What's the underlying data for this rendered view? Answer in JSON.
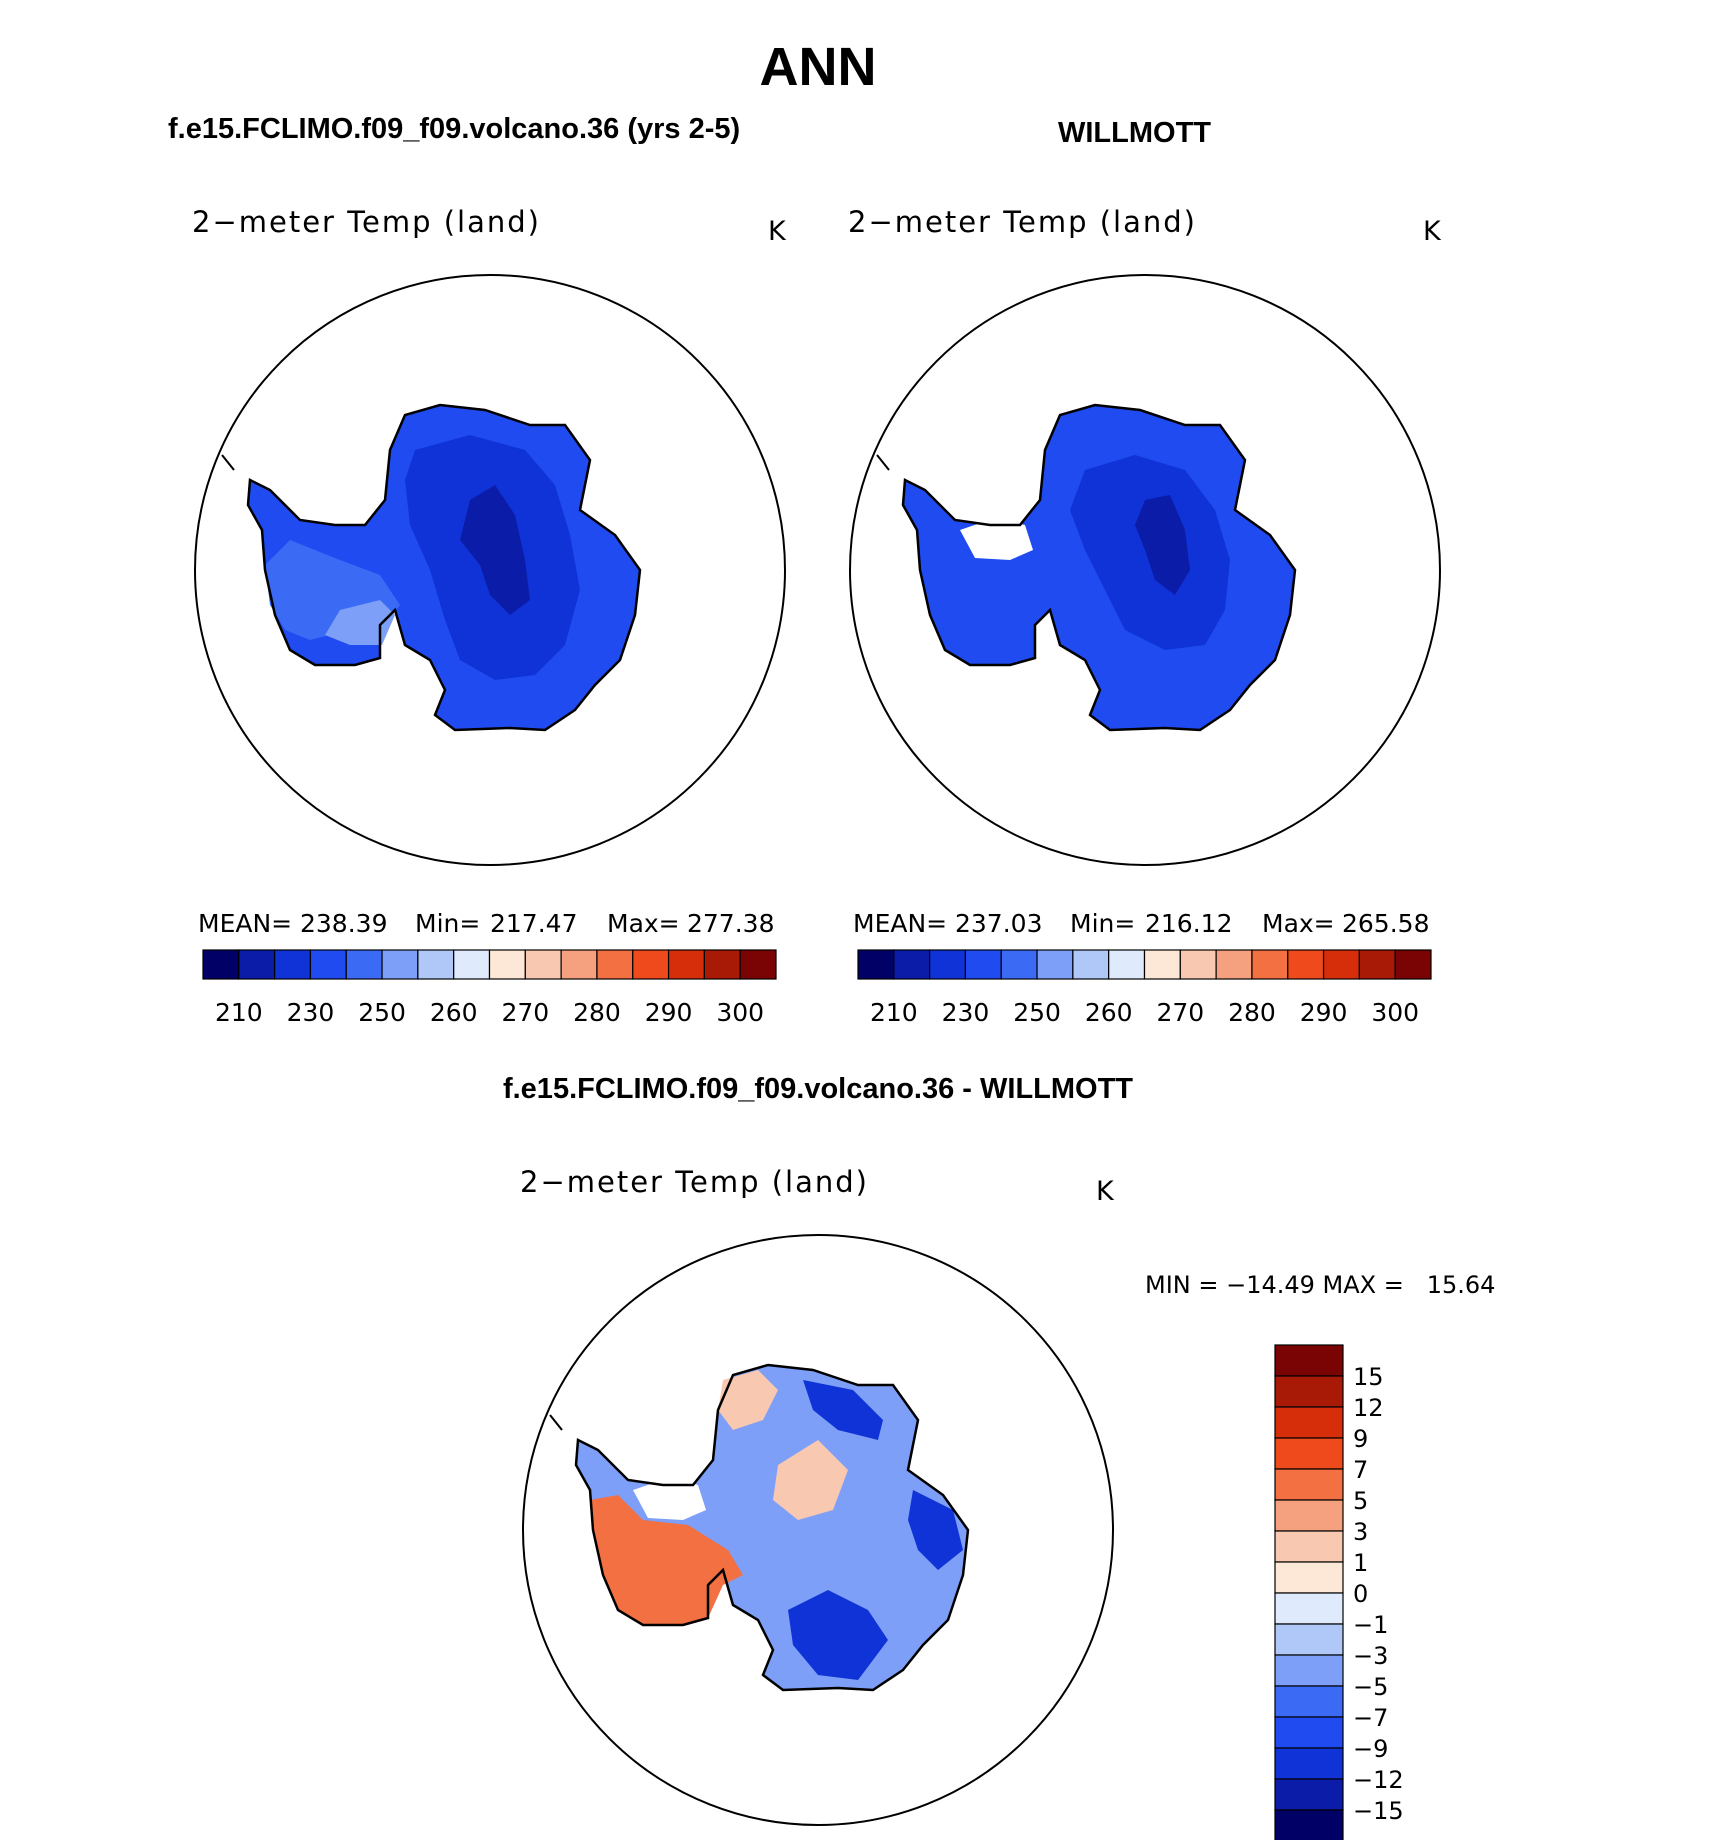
{
  "figure": {
    "season": "ANN",
    "units": "K",
    "panels": [
      {
        "title": "f.e15.FCLIMO.f09_f09.volcano.36 (yrs 2-5)",
        "variable": "2−meter Temp (land)",
        "units": "K",
        "stats": {
          "mean_label": "MEAN=",
          "mean": "238.39",
          "min_label": "Min=",
          "min": "217.47",
          "max_label": "Max=",
          "max": "277.38"
        }
      },
      {
        "title": "WILLMOTT",
        "variable": "2−meter Temp (land)",
        "units": "K",
        "stats": {
          "mean_label": "MEAN=",
          "mean": "237.03",
          "min_label": "Min=",
          "min": "216.12",
          "max_label": "Max=",
          "max": "265.58"
        }
      }
    ],
    "diff_panel": {
      "title": "f.e15.FCLIMO.f09_f09.volcano.36 - WILLMOTT",
      "variable": "2−meter Temp (land)",
      "units": "K",
      "minmax": "MIN = −14.49 MAX =   15.64"
    }
  },
  "colorbars": {
    "absolute": {
      "colors": [
        "#000066",
        "#0a1ca8",
        "#0f33d6",
        "#1f4bf0",
        "#3b6af5",
        "#7d9ff7",
        "#b0c8f8",
        "#dfeafd",
        "#fde7d6",
        "#f9c8b0",
        "#f5a07e",
        "#f27042",
        "#ee4a1c",
        "#d62e0a",
        "#a81a06",
        "#7a0404"
      ],
      "tick_labels": [
        "210",
        "230",
        "250",
        "260",
        "270",
        "280",
        "290",
        "300"
      ]
    },
    "difference": {
      "colors_top_to_bottom": [
        "#7a0404",
        "#a81a06",
        "#d62e0a",
        "#ee4a1c",
        "#f27042",
        "#f5a07e",
        "#f9c8b0",
        "#fde7d6",
        "#dfeafd",
        "#b0c8f8",
        "#7d9ff7",
        "#3b6af5",
        "#1f4bf0",
        "#0f33d6",
        "#0a1ca8",
        "#000066"
      ],
      "tick_labels": [
        "15",
        "12",
        "9",
        "7",
        "5",
        "3",
        "1",
        "0",
        "−1",
        "−3",
        "−5",
        "−7",
        "−9",
        "−12",
        "−15"
      ]
    }
  },
  "colors": {
    "land_mid": "#1f4bf0",
    "land_light": "#3b6af5",
    "land_pale": "#7d9ff7",
    "land_dark": "#0f33d6",
    "land_darkest": "#0a1ca8",
    "warm": "#f27042",
    "warm_light": "#f9c8b0"
  }
}
